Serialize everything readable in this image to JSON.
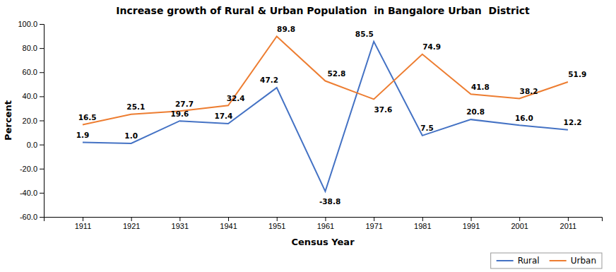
{
  "chart_data": {
    "type": "line",
    "title": "Increase growth of Rural & Urban Population  in Bangalore Urban  District",
    "xlabel": "Census Year",
    "ylabel": "Percent",
    "x": [
      1911,
      1921,
      1931,
      1941,
      1951,
      1961,
      1971,
      1981,
      1991,
      2001,
      2011
    ],
    "series": [
      {
        "name": "Rural",
        "color": "#4472C4",
        "values": [
          1.9,
          1.0,
          19.6,
          17.4,
          47.2,
          -38.8,
          85.5,
          7.5,
          20.8,
          16.0,
          12.2
        ],
        "value_labels": [
          "1.9",
          "1.0",
          "19.6",
          "17.4",
          "47.2",
          "-38.8",
          "85.5",
          "7.5",
          "20.8",
          "16.0",
          "12.2"
        ]
      },
      {
        "name": "Urban",
        "color": "#ED7D31",
        "values": [
          16.5,
          25.1,
          27.7,
          32.4,
          89.8,
          52.8,
          37.6,
          74.9,
          41.8,
          38.2,
          51.9
        ],
        "value_labels": [
          "16.5",
          "25.1",
          "27.7",
          "32.4",
          "89.8",
          "52.8",
          "37.6",
          "74.9",
          "41.8",
          "38.2",
          "51.9"
        ]
      }
    ],
    "xlim": [
      1903,
      2018
    ],
    "xticks": [
      1911,
      1921,
      1931,
      1941,
      1951,
      1961,
      1971,
      1981,
      1991,
      2001,
      2011
    ],
    "ylim": [
      -60.0,
      100.0
    ],
    "yticks": [
      {
        "value": -60,
        "label": "-60.0"
      },
      {
        "value": -40,
        "label": "-40.0"
      },
      {
        "value": -20,
        "label": "-20.0"
      },
      {
        "value": 0,
        "label": "0.0"
      },
      {
        "value": 20,
        "label": "20.0"
      },
      {
        "value": 40,
        "label": "40.0"
      },
      {
        "value": 60,
        "label": "60.0"
      },
      {
        "value": 80,
        "label": "80.0"
      },
      {
        "value": 100,
        "label": "100.0"
      }
    ],
    "grid": false,
    "data_labels": true,
    "legend": "bottom-right"
  }
}
